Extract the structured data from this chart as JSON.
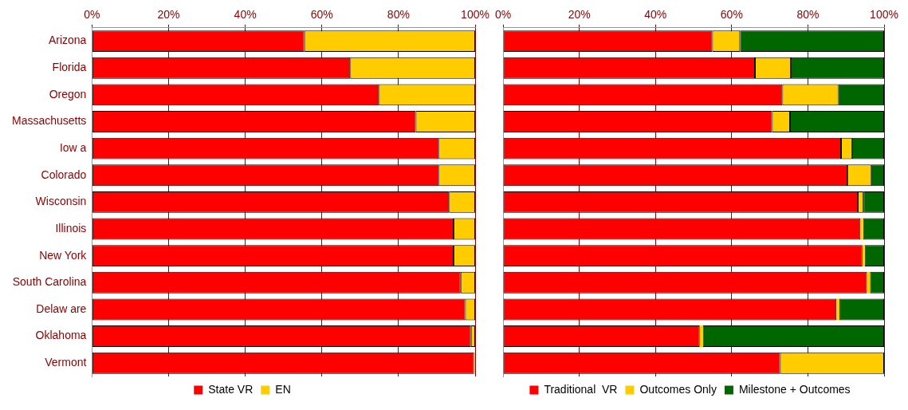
{
  "chart_data": [
    {
      "type": "bar",
      "orientation": "horizontal",
      "stacked": true,
      "categories": [
        "Arizona",
        "Florida",
        "Oregon",
        "Massachusetts",
        "Iow a",
        "Colorado",
        "Wisconsin",
        "Illinois",
        "New York",
        "South Carolina",
        "Delaw are",
        "Oklahoma",
        "Vermont"
      ],
      "series": [
        {
          "name": "State VR",
          "color": "#ff0000",
          "values": [
            55.4,
            67.4,
            74.9,
            84.5,
            90.5,
            90.5,
            93.2,
            94.4,
            94.4,
            96.2,
            97.4,
            98.9,
            99.7
          ]
        },
        {
          "name": "EN",
          "color": "#ffcc00",
          "values": [
            44.6,
            32.6,
            25.1,
            15.5,
            9.5,
            9.5,
            6.8,
            5.6,
            5.6,
            3.8,
            2.6,
            1.1,
            0.3
          ]
        }
      ],
      "xlim": [
        0,
        100
      ],
      "xticks": [
        {
          "value": 0,
          "label": "0%"
        },
        {
          "value": 20,
          "label": "20%"
        },
        {
          "value": 40,
          "label": "40%"
        },
        {
          "value": 60,
          "label": "60%"
        },
        {
          "value": 80,
          "label": "80%"
        },
        {
          "value": 100,
          "label": "100%"
        }
      ],
      "grid": "x",
      "legend": "bottom"
    },
    {
      "type": "bar",
      "orientation": "horizontal",
      "stacked": true,
      "categories": [
        null,
        null,
        null,
        null,
        null,
        null,
        null,
        null,
        null,
        null,
        null,
        null,
        null
      ],
      "series": [
        {
          "name": "Traditional  VR",
          "color": "#ff0000",
          "values": [
            54.9,
            66.1,
            73.3,
            70.6,
            88.7,
            90.4,
            93.1,
            93.8,
            94.3,
            95.5,
            87.5,
            51.6,
            72.7
          ]
        },
        {
          "name": "Outcomes Only",
          "color": "#ffcc00",
          "values": [
            7.3,
            9.4,
            14.7,
            4.7,
            2.9,
            6.2,
            1.5,
            0.7,
            0.6,
            0.8,
            0.8,
            0.8,
            27.3
          ]
        },
        {
          "name": "Milestone + Outcomes",
          "color": "#006600",
          "values": [
            37.8,
            24.5,
            12.0,
            24.7,
            8.4,
            3.4,
            5.4,
            5.5,
            5.1,
            3.7,
            11.7,
            47.6,
            0
          ]
        }
      ],
      "xlim": [
        0,
        100
      ],
      "xticks": [
        {
          "value": 0,
          "label": "0%"
        },
        {
          "value": 20,
          "label": "20%"
        },
        {
          "value": 40,
          "label": "40%"
        },
        {
          "value": 60,
          "label": "60%"
        },
        {
          "value": 80,
          "label": "80%"
        },
        {
          "value": 100,
          "label": "100%"
        }
      ],
      "grid": "x",
      "legend": "bottom",
      "tick_labels": "x"
    }
  ]
}
